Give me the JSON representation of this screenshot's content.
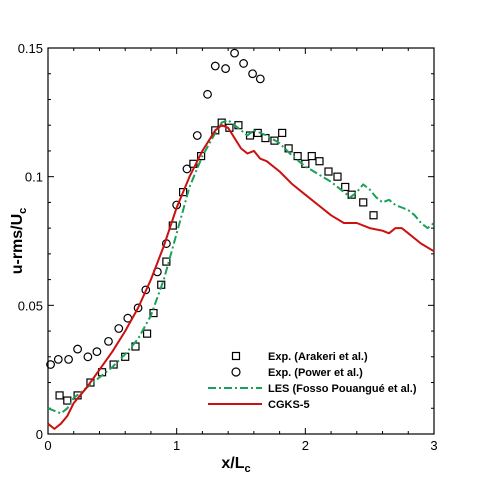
{
  "chart_data": {
    "type": "scatter",
    "xlabel": "x/L",
    "xlabel_sub": "c",
    "ylabel": "u-rms/U",
    "ylabel_sub": "c",
    "xlim": [
      0,
      3
    ],
    "ylim": [
      0,
      0.15
    ],
    "x_ticks": [
      0,
      1,
      2,
      3
    ],
    "x_tick_labels": [
      "0",
      "1",
      "2",
      "3"
    ],
    "y_ticks": [
      0,
      0.05,
      0.1,
      0.15
    ],
    "y_tick_labels": [
      "0",
      "0.05",
      "0.1",
      "0.15"
    ],
    "grid": false,
    "legend_position": "bottom-right",
    "series": [
      {
        "name": "Exp. (Arakeri et al.)",
        "kind": "markers",
        "marker": "square",
        "color": "#000000",
        "x": [
          0.09,
          0.15,
          0.23,
          0.33,
          0.42,
          0.51,
          0.6,
          0.68,
          0.77,
          0.82,
          0.88,
          0.92,
          0.97,
          1.05,
          1.13,
          1.19,
          1.3,
          1.35,
          1.41,
          1.48,
          1.57,
          1.63,
          1.69,
          1.76,
          1.82,
          1.87,
          1.94,
          2.0,
          2.05,
          2.11,
          2.18,
          2.25,
          2.31,
          2.36,
          2.45,
          2.53
        ],
        "y": [
          0.015,
          0.013,
          0.015,
          0.02,
          0.024,
          0.027,
          0.03,
          0.034,
          0.039,
          0.047,
          0.058,
          0.067,
          0.081,
          0.094,
          0.105,
          0.108,
          0.118,
          0.121,
          0.119,
          0.12,
          0.116,
          0.117,
          0.115,
          0.114,
          0.117,
          0.111,
          0.108,
          0.105,
          0.108,
          0.106,
          0.102,
          0.1,
          0.096,
          0.093,
          0.09,
          0.085
        ]
      },
      {
        "name": "Exp. (Power et al.)",
        "kind": "markers",
        "marker": "circle",
        "color": "#000000",
        "x": [
          0.02,
          0.08,
          0.16,
          0.23,
          0.31,
          0.38,
          0.47,
          0.55,
          0.62,
          0.7,
          0.76,
          0.85,
          0.92,
          1.0,
          1.08,
          1.16,
          1.24,
          1.3,
          1.38,
          1.45,
          1.52,
          1.59,
          1.65
        ],
        "y": [
          0.027,
          0.029,
          0.029,
          0.033,
          0.03,
          0.032,
          0.036,
          0.041,
          0.045,
          0.049,
          0.056,
          0.063,
          0.074,
          0.089,
          0.103,
          0.116,
          0.132,
          0.143,
          0.142,
          0.148,
          0.144,
          0.14,
          0.138
        ]
      },
      {
        "name": "LES (Fosso Pouangué et al.)",
        "kind": "line",
        "dash": "dashdot",
        "color": "#1aa05a",
        "x": [
          0.0,
          0.05,
          0.1,
          0.15,
          0.2,
          0.3,
          0.4,
          0.5,
          0.6,
          0.7,
          0.8,
          0.9,
          1.0,
          1.1,
          1.2,
          1.3,
          1.35,
          1.4,
          1.45,
          1.5,
          1.55,
          1.6,
          1.7,
          1.8,
          1.9,
          2.0,
          2.1,
          2.2,
          2.3,
          2.35,
          2.4,
          2.45,
          2.5,
          2.55,
          2.6,
          2.65,
          2.7,
          2.75,
          2.8,
          2.85,
          2.9,
          2.95,
          3.0
        ],
        "y": [
          0.01,
          0.009,
          0.008,
          0.01,
          0.014,
          0.018,
          0.022,
          0.026,
          0.031,
          0.037,
          0.046,
          0.06,
          0.078,
          0.096,
          0.108,
          0.117,
          0.121,
          0.122,
          0.12,
          0.118,
          0.116,
          0.118,
          0.116,
          0.113,
          0.108,
          0.104,
          0.101,
          0.098,
          0.094,
          0.092,
          0.094,
          0.097,
          0.095,
          0.092,
          0.09,
          0.091,
          0.089,
          0.088,
          0.087,
          0.085,
          0.082,
          0.08,
          0.082
        ]
      },
      {
        "name": "CGKS-5",
        "kind": "line",
        "dash": "solid",
        "color": "#cc1010",
        "x": [
          0.0,
          0.05,
          0.1,
          0.15,
          0.2,
          0.3,
          0.4,
          0.5,
          0.6,
          0.7,
          0.8,
          0.9,
          1.0,
          1.1,
          1.2,
          1.3,
          1.35,
          1.4,
          1.45,
          1.5,
          1.55,
          1.6,
          1.65,
          1.7,
          1.8,
          1.9,
          2.0,
          2.1,
          2.2,
          2.3,
          2.4,
          2.5,
          2.6,
          2.65,
          2.7,
          2.75,
          2.8,
          2.9,
          3.0
        ],
        "y": [
          0.004,
          0.002,
          0.004,
          0.007,
          0.012,
          0.018,
          0.025,
          0.032,
          0.04,
          0.049,
          0.06,
          0.073,
          0.088,
          0.1,
          0.11,
          0.118,
          0.12,
          0.119,
          0.115,
          0.111,
          0.109,
          0.11,
          0.107,
          0.106,
          0.102,
          0.097,
          0.093,
          0.089,
          0.085,
          0.082,
          0.082,
          0.08,
          0.079,
          0.078,
          0.08,
          0.08,
          0.078,
          0.074,
          0.071
        ]
      }
    ]
  }
}
